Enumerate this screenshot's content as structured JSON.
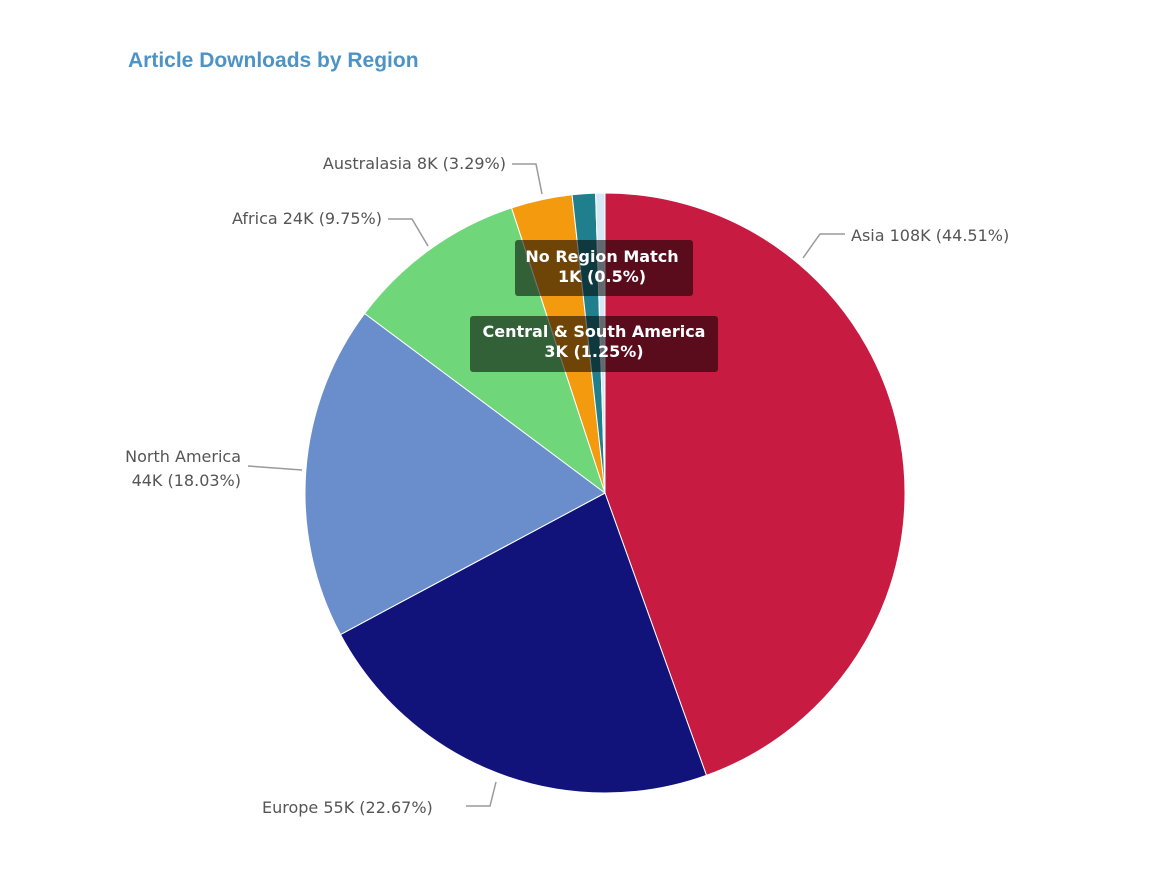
{
  "title": "Article Downloads by Region",
  "chart_data": {
    "type": "pie",
    "title": "Article Downloads by Region",
    "slices": [
      {
        "name": "Asia",
        "value_label": "108K",
        "percent": 44.51,
        "color": "#c81b42"
      },
      {
        "name": "Europe",
        "value_label": "55K",
        "percent": 22.67,
        "color": "#12137a"
      },
      {
        "name": "North America",
        "value_label": "44K",
        "percent": 18.03,
        "color": "#6a8ecb"
      },
      {
        "name": "Africa",
        "value_label": "24K",
        "percent": 9.75,
        "color": "#6fd67a"
      },
      {
        "name": "Australasia",
        "value_label": "8K",
        "percent": 3.29,
        "color": "#f39a0f"
      },
      {
        "name": "Central & South America",
        "value_label": "3K",
        "percent": 1.25,
        "color": "#1f7f8c"
      },
      {
        "name": "No Region Match",
        "value_label": "1K",
        "percent": 0.5,
        "color": "#d6e8f6"
      }
    ],
    "labels": {
      "asia": "Asia 108K (44.51%)",
      "europe": "Europe 55K (22.67%)",
      "north_america_1": "North America",
      "north_america_2": "44K (18.03%)",
      "africa": "Africa 24K (9.75%)",
      "australasia": "Australasia 8K (3.29%)"
    },
    "tooltips": {
      "no_region_1": "No Region Match",
      "no_region_2": "1K (0.5%)",
      "central_1": "Central & South America",
      "central_2": "3K (1.25%)"
    },
    "legend": "none"
  }
}
